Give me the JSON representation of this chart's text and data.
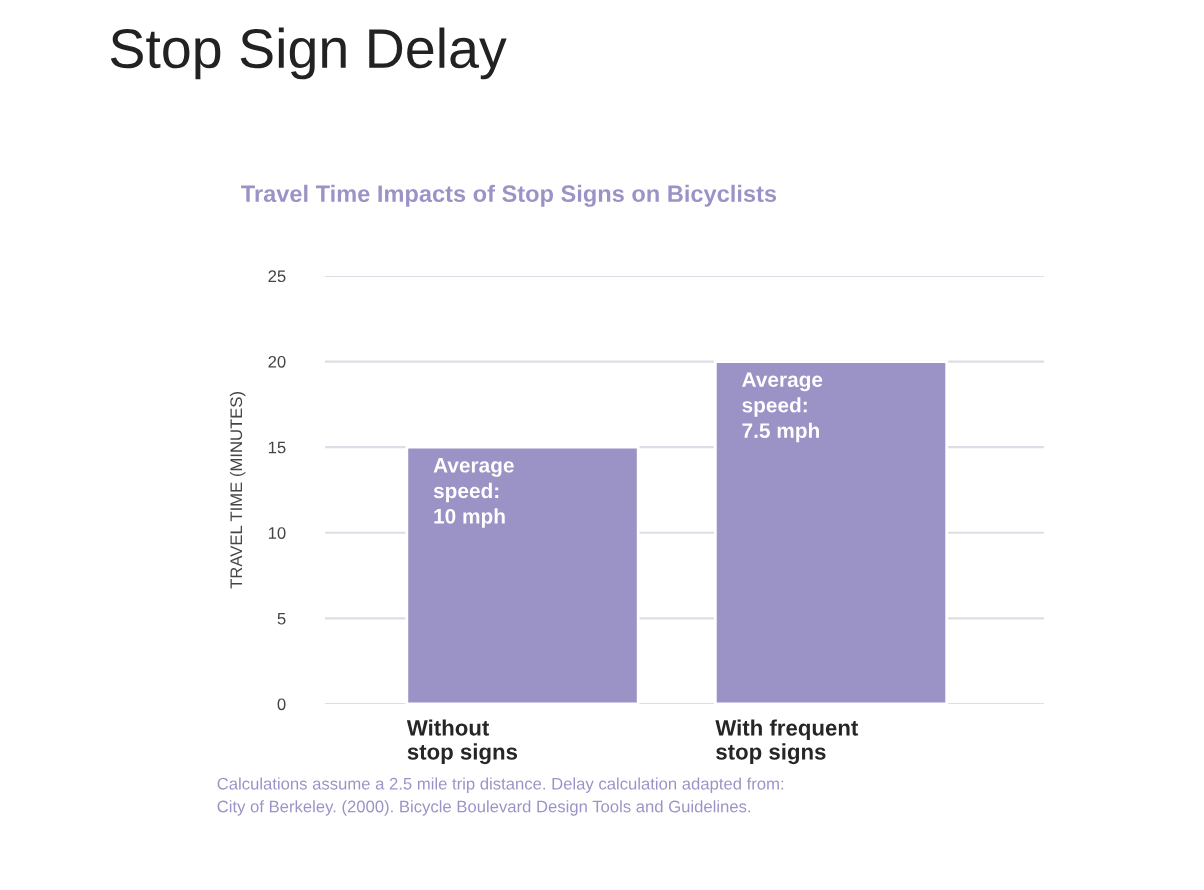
{
  "chart_data": {
    "type": "bar",
    "title": "Stop Sign Delay",
    "subtitle": "Travel Time Impacts of Stop Signs on Bicyclists",
    "ylabel": "TRAVEL TIME (MINUTES)",
    "categories": [
      "Without\nstop signs",
      "With frequent\nstop signs"
    ],
    "values": [
      15,
      20
    ],
    "color": "#9b93c6",
    "ylim": [
      0,
      25
    ],
    "yticks": [
      0,
      5,
      10,
      15,
      20,
      25
    ],
    "grid": "y",
    "annotations": [
      {
        "text": "Average\nspeed:\n10 mph",
        "x": "Without\nstop signs",
        "y": 15
      },
      {
        "text": "Average\nspeed:\n7.5 mph",
        "x": "With frequent\nstop signs",
        "y": 20
      },
      "Calculations assume a 2.5 mile trip distance. Delay calculation adapted from:\nCity of Berkeley. (2000). Bicycle Boulevard Design Tools and Guidelines."
    ]
  }
}
